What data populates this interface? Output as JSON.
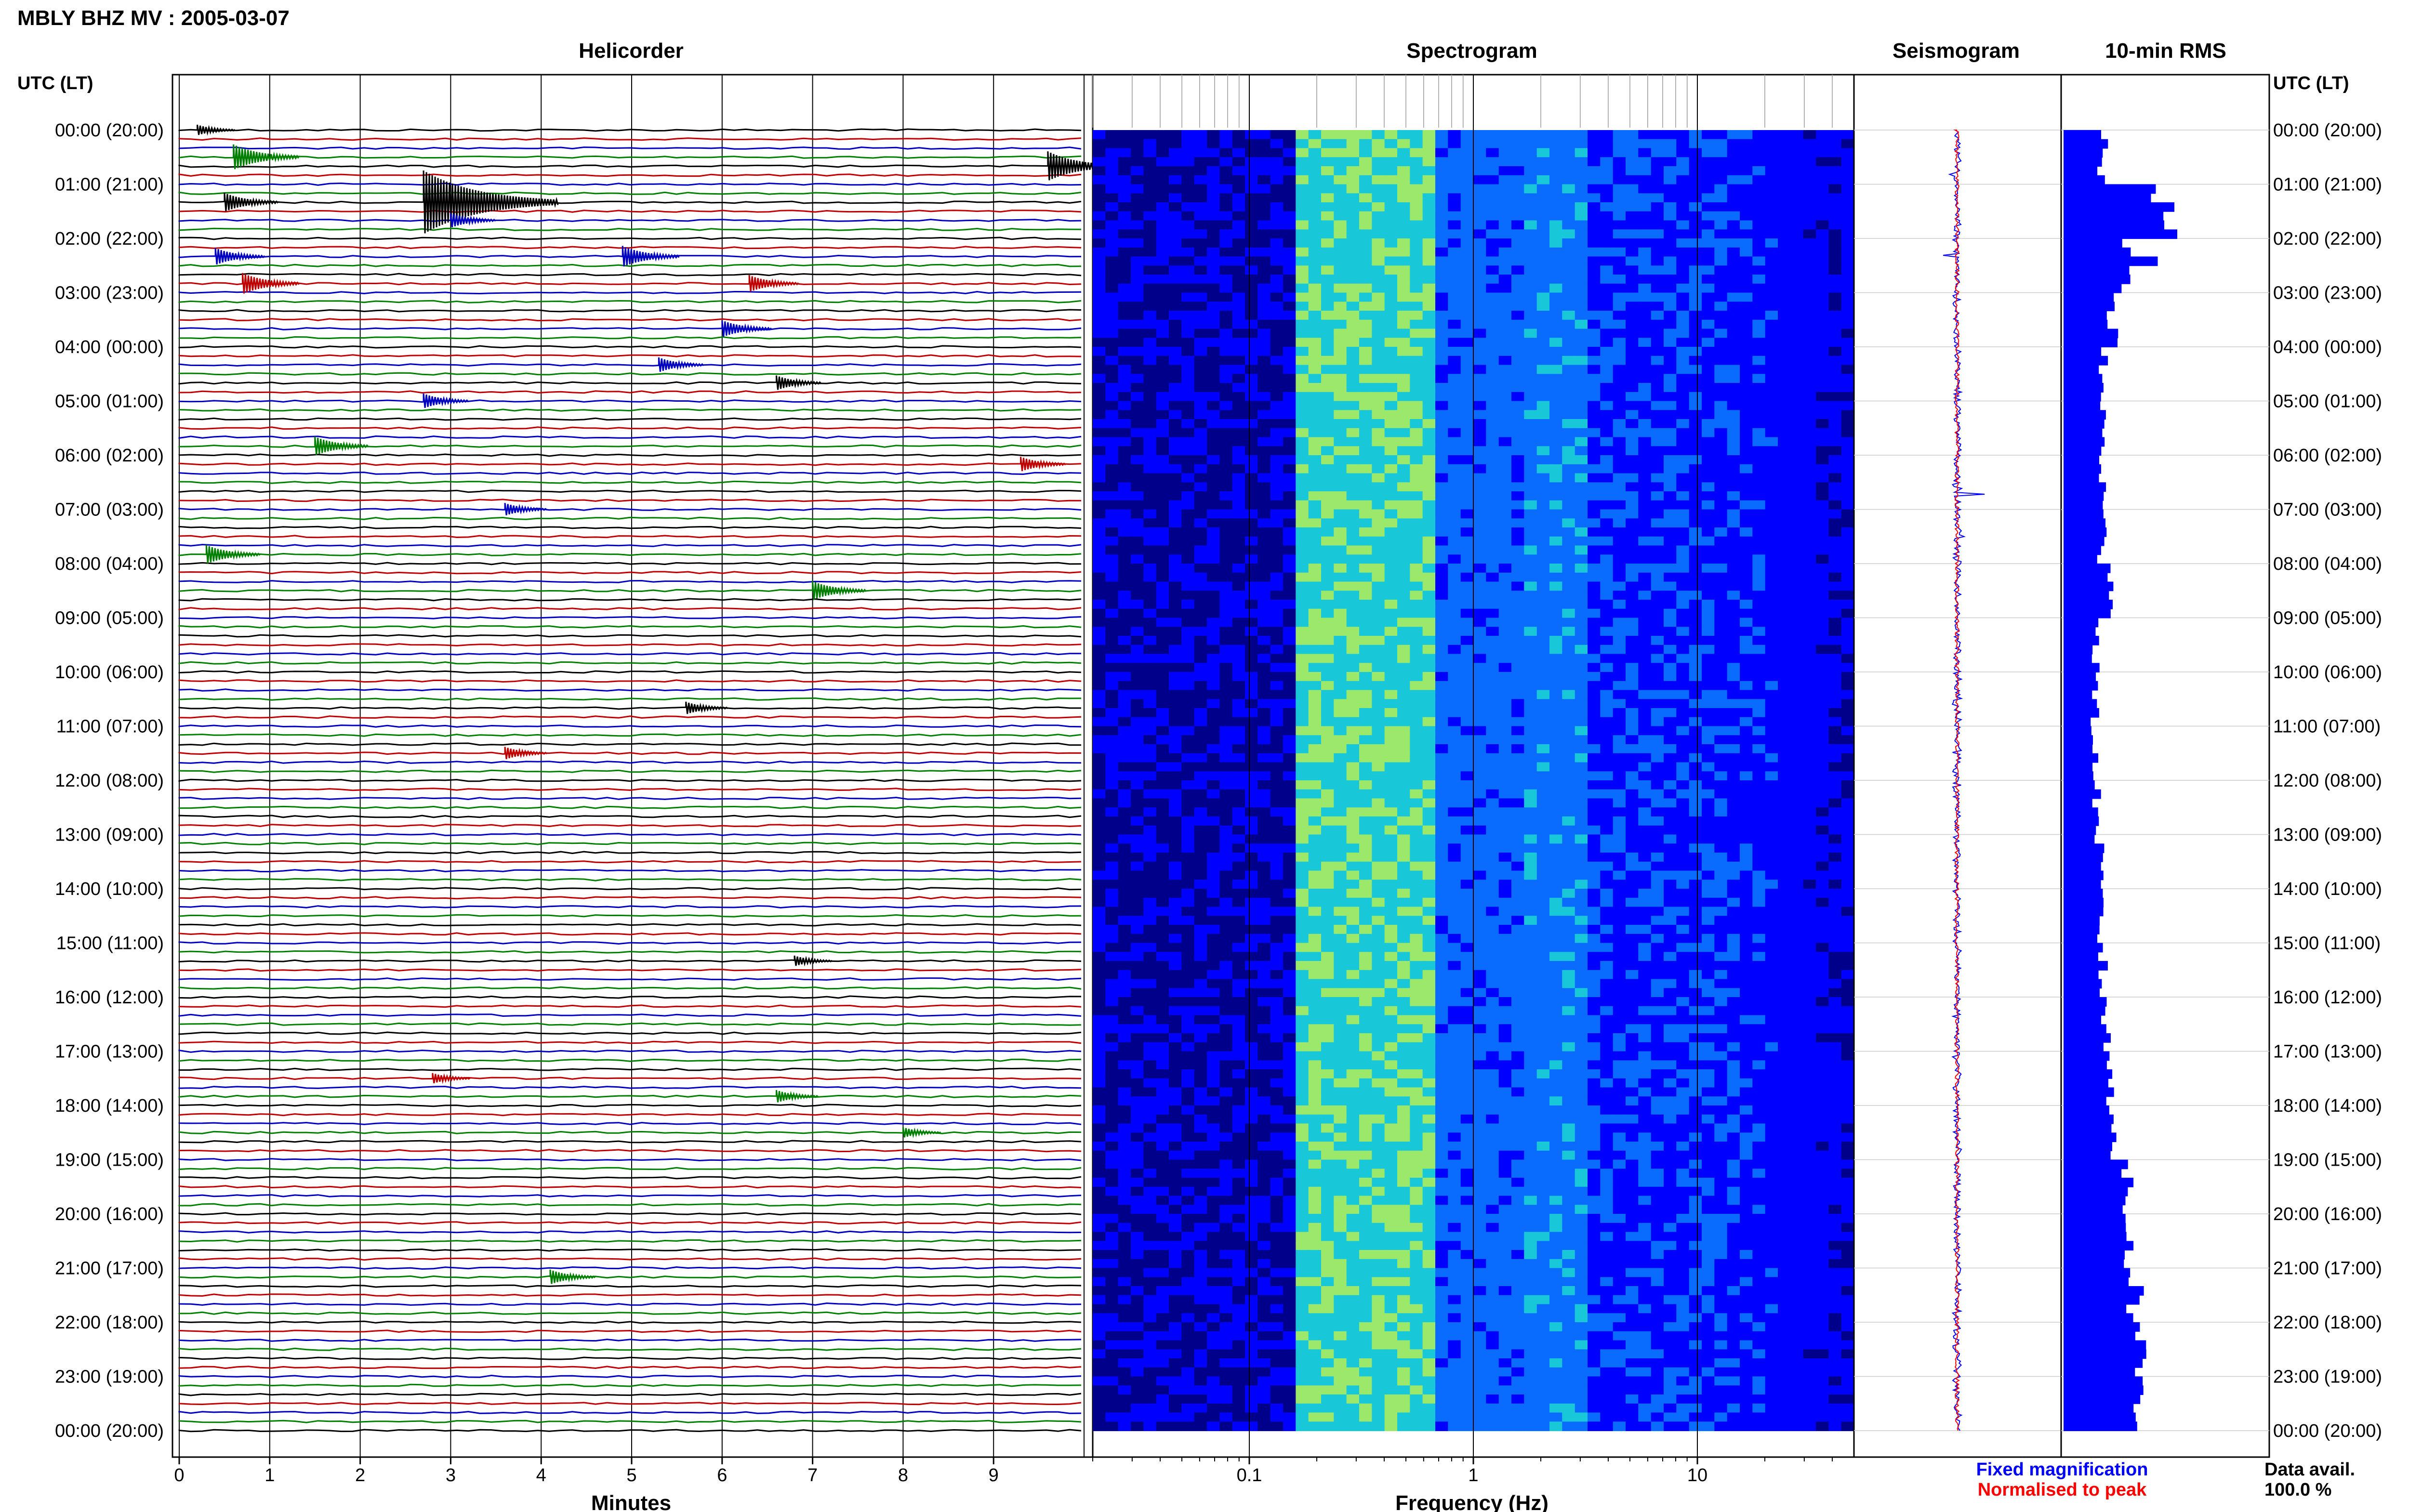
{
  "header": {
    "station_title": "MBLY BHZ MV : 2005-03-07"
  },
  "panels": {
    "helicorder": "Helicorder",
    "spectrogram": "Spectrogram",
    "seismogram": "Seismogram",
    "rms": "10-min RMS"
  },
  "time_axis": {
    "header": "UTC (LT)",
    "labels": [
      "00:00 (20:00)",
      "01:00 (21:00)",
      "02:00 (22:00)",
      "03:00 (23:00)",
      "04:00 (00:00)",
      "05:00 (01:00)",
      "06:00 (02:00)",
      "07:00 (03:00)",
      "08:00 (04:00)",
      "09:00 (05:00)",
      "10:00 (06:00)",
      "11:00 (07:00)",
      "12:00 (08:00)",
      "13:00 (09:00)",
      "14:00 (10:00)",
      "15:00 (11:00)",
      "16:00 (12:00)",
      "17:00 (13:00)",
      "18:00 (14:00)",
      "19:00 (15:00)",
      "20:00 (16:00)",
      "21:00 (17:00)",
      "22:00 (18:00)",
      "23:00 (19:00)",
      "00:00 (20:00)"
    ]
  },
  "helicorder_axis": {
    "xlabel": "Minutes",
    "ticks": [
      "0",
      "1",
      "2",
      "3",
      "4",
      "5",
      "6",
      "7",
      "8",
      "9"
    ],
    "colors": [
      "#000000",
      "#c00000",
      "#0000c0",
      "#008000"
    ]
  },
  "spectrogram_axis": {
    "xlabel": "Frequency (Hz)",
    "ticks": [
      "0.1",
      "1",
      "10"
    ],
    "colors": [
      "#00008b",
      "#0000ff",
      "#0a6cff",
      "#19c8d8",
      "#9be86a"
    ]
  },
  "legend": {
    "fixed": "Fixed magnification",
    "fixed_color": "#0000ff",
    "normalised": "Normalised to peak",
    "normalised_color": "#ff0000"
  },
  "availability": {
    "label": "Data avail.",
    "value": "100.0 %"
  },
  "chart_data": [
    {
      "type": "line",
      "title": "Helicorder",
      "xlabel": "Minutes",
      "xlim": [
        0,
        10
      ],
      "ylabel": "UTC (LT)",
      "rows_per_hour": 6,
      "events": [
        {
          "hour": 0.0,
          "minute": 0.2,
          "amp": 0.5
        },
        {
          "hour": 0.5,
          "minute": 0.6,
          "amp": 1.2
        },
        {
          "hour": 0.6,
          "minute": 9.6,
          "amp": 1.4
        },
        {
          "hour": 1.3,
          "minute": 0.5,
          "amp": 0.9
        },
        {
          "hour": 1.3,
          "minute": 2.7,
          "amp": 3.0
        },
        {
          "hour": 1.6,
          "minute": 3.0,
          "amp": 0.7
        },
        {
          "hour": 2.3,
          "minute": 0.4,
          "amp": 0.8
        },
        {
          "hour": 2.3,
          "minute": 4.9,
          "amp": 1.0
        },
        {
          "hour": 2.8,
          "minute": 0.7,
          "amp": 1.0
        },
        {
          "hour": 2.9,
          "minute": 6.3,
          "amp": 0.8
        },
        {
          "hour": 3.6,
          "minute": 6.0,
          "amp": 0.8
        },
        {
          "hour": 4.3,
          "minute": 5.3,
          "amp": 0.7
        },
        {
          "hour": 4.6,
          "minute": 6.6,
          "amp": 0.7
        },
        {
          "hour": 5.0,
          "minute": 2.7,
          "amp": 0.7
        },
        {
          "hour": 5.8,
          "minute": 1.5,
          "amp": 0.9
        },
        {
          "hour": 6.2,
          "minute": 9.3,
          "amp": 0.7
        },
        {
          "hour": 7.0,
          "minute": 3.6,
          "amp": 0.6
        },
        {
          "hour": 7.9,
          "minute": 0.3,
          "amp": 0.9
        },
        {
          "hour": 8.5,
          "minute": 7.0,
          "amp": 0.9
        },
        {
          "hour": 10.6,
          "minute": 5.6,
          "amp": 0.6
        },
        {
          "hour": 11.5,
          "minute": 3.6,
          "amp": 0.6
        },
        {
          "hour": 15.3,
          "minute": 6.8,
          "amp": 0.5
        },
        {
          "hour": 17.5,
          "minute": 2.8,
          "amp": 0.5
        },
        {
          "hour": 17.8,
          "minute": 6.6,
          "amp": 0.6
        },
        {
          "hour": 18.5,
          "minute": 8.0,
          "amp": 0.5
        },
        {
          "hour": 21.1,
          "minute": 4.1,
          "amp": 0.7
        }
      ]
    },
    {
      "type": "heatmap",
      "title": "Spectrogram",
      "xlabel": "Frequency (Hz)",
      "x_scale": "log",
      "xlim": [
        0.02,
        50
      ],
      "ylabel": "UTC (LT)",
      "ylim_hours": [
        0,
        24
      ],
      "energy_bands_hz": [
        [
          0.15,
          0.6
        ],
        [
          1.5,
          3
        ]
      ]
    },
    {
      "type": "line",
      "title": "Seismogram",
      "series": [
        {
          "name": "Fixed magnification"
        },
        {
          "name": "Normalised to peak"
        }
      ],
      "ylim_hours": [
        0,
        24
      ]
    },
    {
      "type": "bar",
      "title": "10-min RMS",
      "orientation": "horizontal",
      "ylim_hours": [
        0,
        24
      ],
      "hourly_rms_relative": [
        0.35,
        0.9,
        0.55,
        0.45,
        0.35,
        0.35,
        0.35,
        0.35,
        0.45,
        0.3,
        0.28,
        0.28,
        0.3,
        0.32,
        0.33,
        0.35,
        0.38,
        0.42,
        0.48,
        0.55,
        0.6,
        0.65,
        0.68,
        0.7
      ]
    }
  ]
}
